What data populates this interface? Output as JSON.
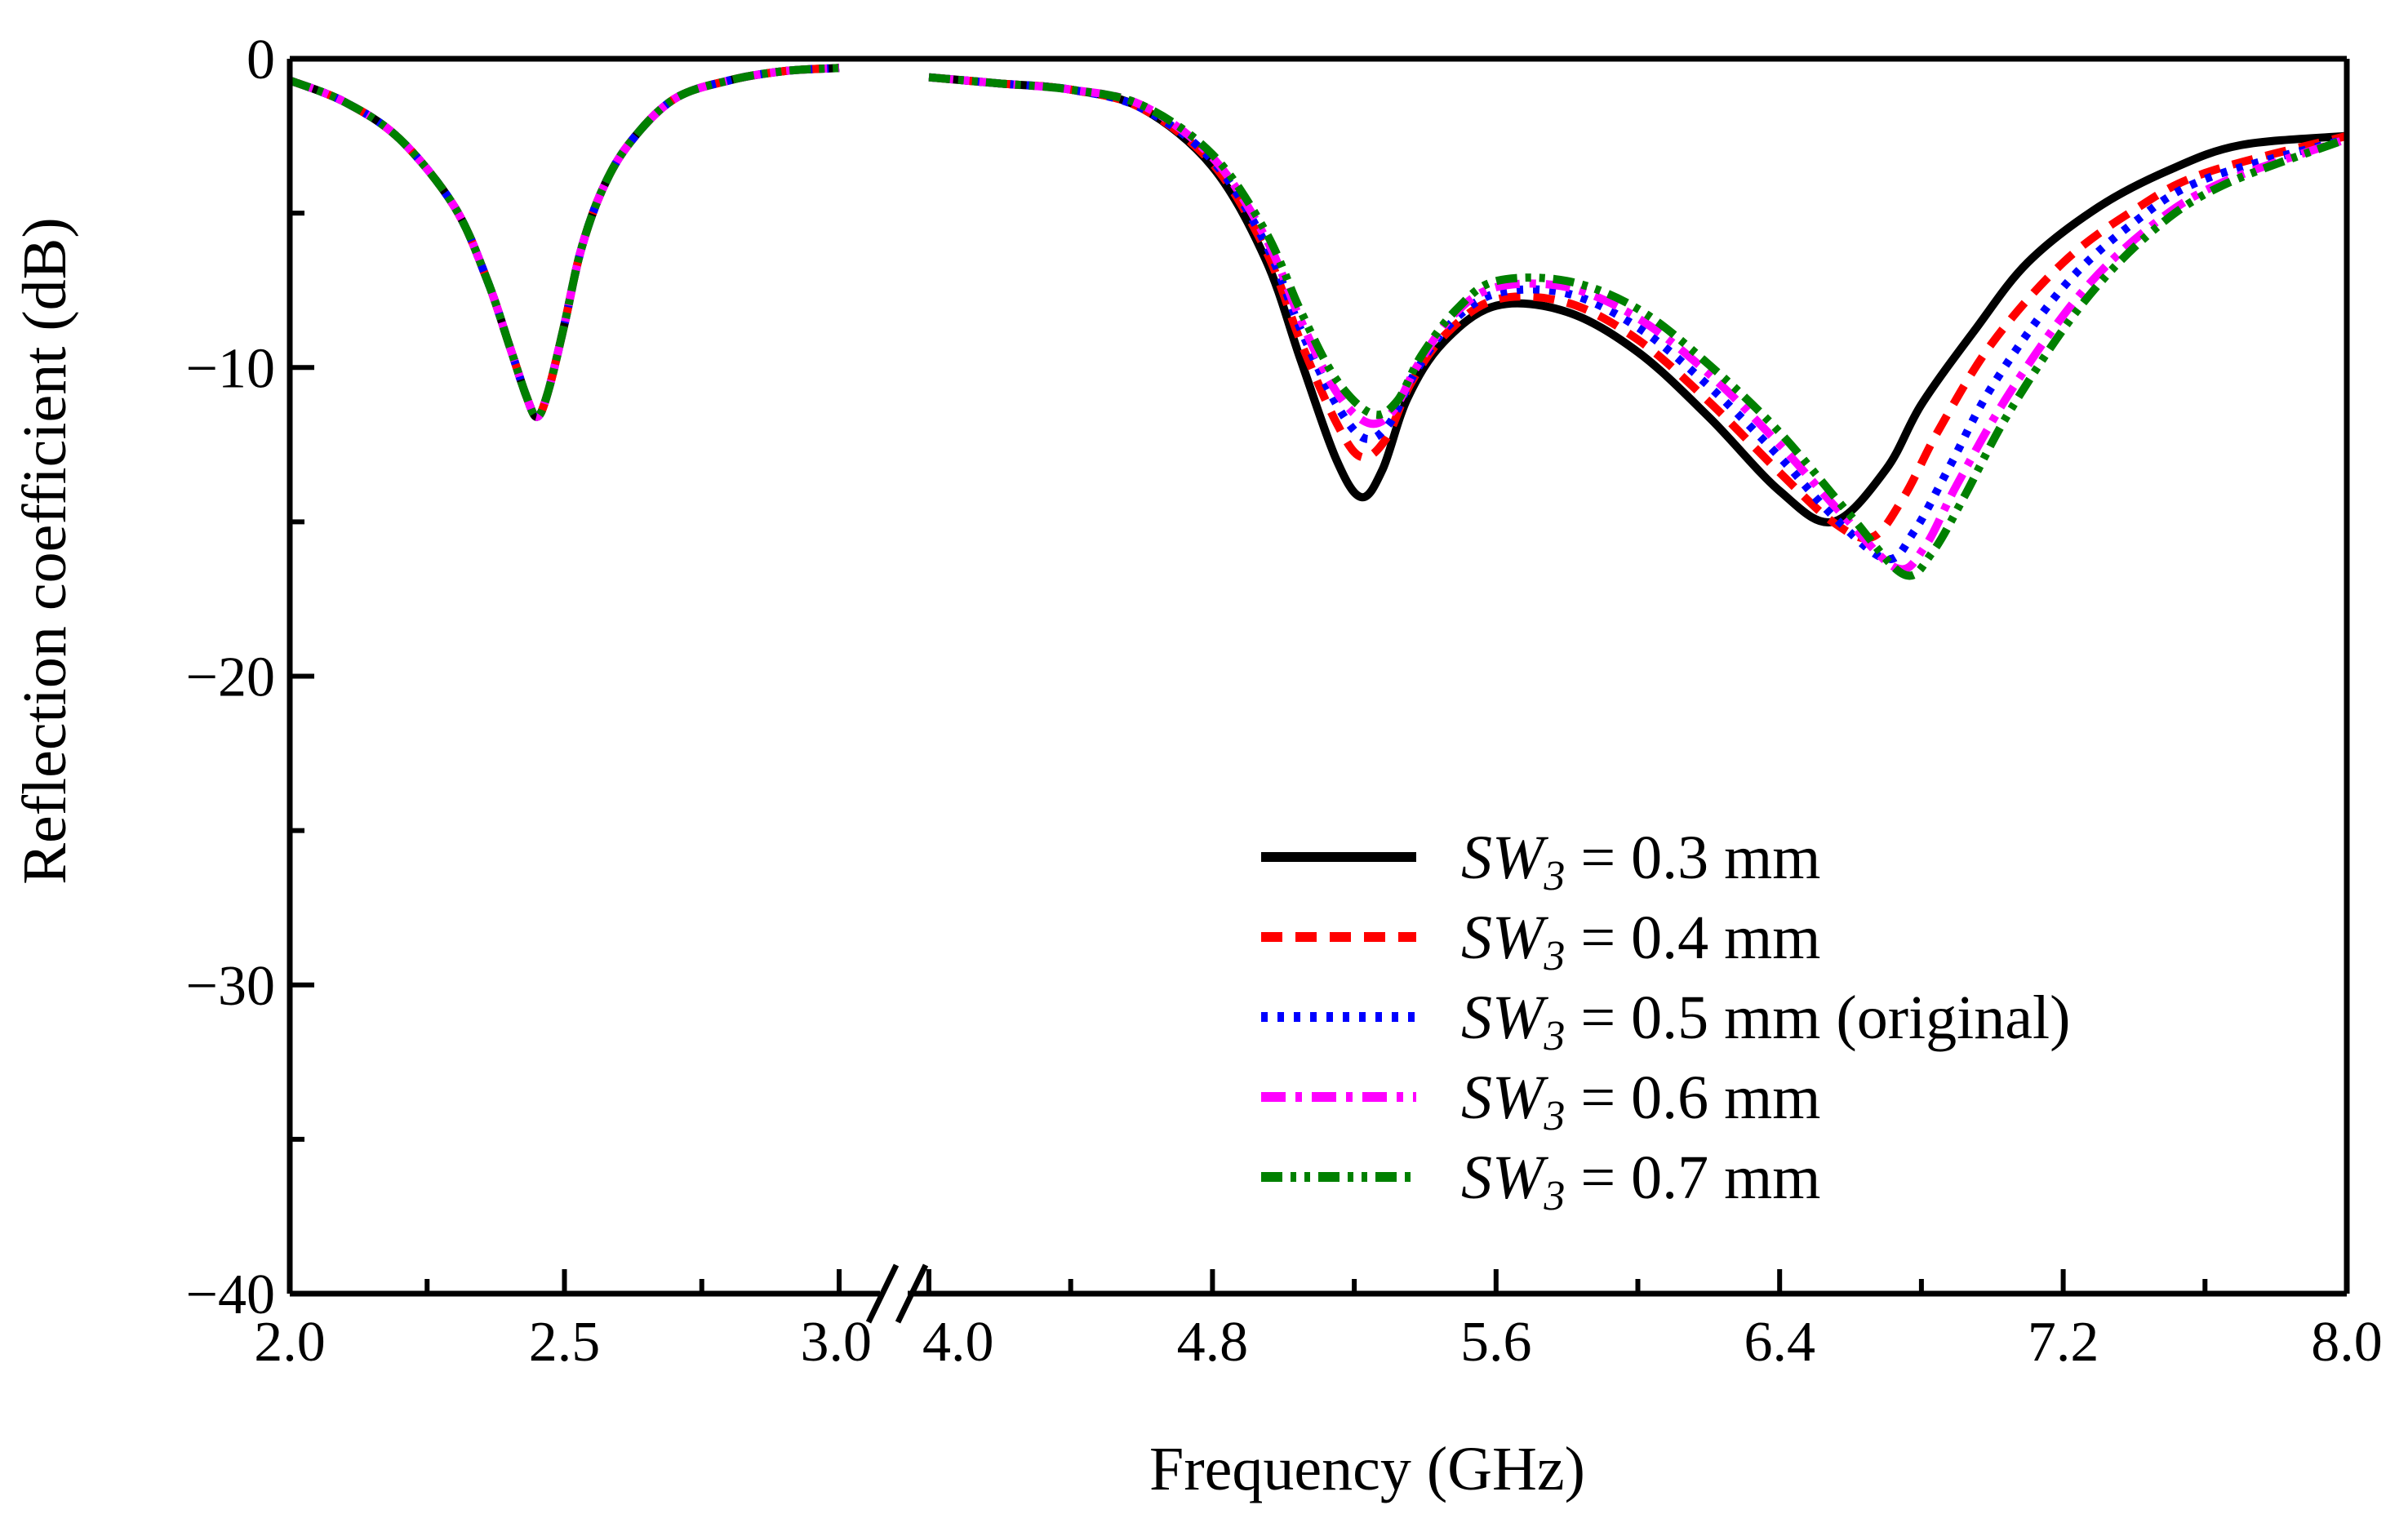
{
  "chart_data": {
    "type": "line",
    "xlabel": "Frequency (GHz)",
    "ylabel": "Reflection coefficient (dB)",
    "ylim": [
      -40,
      0
    ],
    "y_ticks": [
      0,
      -10,
      -20,
      -30,
      -40
    ],
    "y_tick_labels": [
      "0",
      "−10",
      "−20",
      "−30",
      "−40"
    ],
    "x_axis_break": {
      "from": 3.0,
      "to": 4.0
    },
    "x_segments": [
      {
        "range": [
          2.0,
          3.0
        ],
        "ticks": [
          2.0,
          2.5,
          3.0
        ],
        "tick_labels": [
          "2.0",
          "2.5",
          "3.0"
        ]
      },
      {
        "range": [
          4.0,
          8.0
        ],
        "ticks": [
          4.0,
          4.8,
          5.6,
          6.4,
          7.2,
          8.0
        ],
        "tick_labels": [
          "4.0",
          "4.8",
          "5.6",
          "6.4",
          "7.2",
          "8.0"
        ]
      }
    ],
    "legend_position": "lower-right",
    "series": [
      {
        "name": "SW3 = 0.3 mm",
        "label_prefix": "SW",
        "label_sub": "3",
        "label_suffix": " = 0.3 mm",
        "color": "#000000",
        "dash": "solid",
        "x": [
          2.0,
          2.1,
          2.2,
          2.3,
          2.36,
          2.4,
          2.43,
          2.45,
          2.47,
          2.5,
          2.53,
          2.57,
          2.62,
          2.7,
          2.8,
          2.9,
          3.0,
          4.0,
          4.2,
          4.4,
          4.6,
          4.8,
          4.95,
          5.05,
          5.15,
          5.22,
          5.28,
          5.35,
          5.45,
          5.6,
          5.8,
          6.0,
          6.2,
          6.4,
          6.55,
          6.7,
          6.8,
          6.95,
          7.1,
          7.3,
          7.5,
          7.7,
          8.0
        ],
        "y": [
          -0.7,
          -1.4,
          -2.6,
          -4.8,
          -7.2,
          -9.3,
          -10.9,
          -11.6,
          -10.8,
          -8.6,
          -6.2,
          -4.2,
          -2.7,
          -1.3,
          -0.7,
          -0.4,
          -0.3,
          -0.6,
          -0.8,
          -1.0,
          -1.6,
          -3.5,
          -6.5,
          -9.8,
          -13.0,
          -14.2,
          -13.3,
          -11.0,
          -9.2,
          -8.0,
          -8.2,
          -9.5,
          -11.6,
          -14.0,
          -15.0,
          -13.3,
          -11.2,
          -8.8,
          -6.6,
          -4.8,
          -3.6,
          -2.8,
          -2.5
        ]
      },
      {
        "name": "SW3 = 0.4 mm",
        "label_prefix": "SW",
        "label_sub": "3",
        "label_suffix": " = 0.4 mm",
        "color": "#ff0000",
        "dash": "dashed",
        "x": [
          2.0,
          2.1,
          2.2,
          2.3,
          2.36,
          2.4,
          2.43,
          2.45,
          2.47,
          2.5,
          2.53,
          2.57,
          2.62,
          2.7,
          2.8,
          2.9,
          3.0,
          4.0,
          4.2,
          4.4,
          4.6,
          4.8,
          4.95,
          5.05,
          5.15,
          5.22,
          5.29,
          5.36,
          5.46,
          5.6,
          5.8,
          6.0,
          6.2,
          6.4,
          6.55,
          6.66,
          6.75,
          6.85,
          7.0,
          7.2,
          7.4,
          7.6,
          8.0
        ],
        "y": [
          -0.7,
          -1.4,
          -2.6,
          -4.8,
          -7.2,
          -9.3,
          -10.9,
          -11.6,
          -10.8,
          -8.6,
          -6.2,
          -4.2,
          -2.7,
          -1.3,
          -0.7,
          -0.4,
          -0.3,
          -0.6,
          -0.8,
          -1.0,
          -1.6,
          -3.4,
          -6.2,
          -9.2,
          -11.8,
          -12.9,
          -12.3,
          -10.5,
          -8.9,
          -7.8,
          -7.9,
          -9.1,
          -11.1,
          -13.4,
          -15.0,
          -15.5,
          -14.2,
          -12.0,
          -9.2,
          -6.6,
          -4.9,
          -3.7,
          -2.5
        ]
      },
      {
        "name": "SW3 = 0.5 mm (original)",
        "label_prefix": "SW",
        "label_sub": "3",
        "label_suffix": " = 0.5 mm (original)",
        "color": "#0000ff",
        "dash": "dotted",
        "x": [
          2.0,
          2.1,
          2.2,
          2.3,
          2.36,
          2.4,
          2.43,
          2.45,
          2.47,
          2.5,
          2.53,
          2.57,
          2.62,
          2.7,
          2.8,
          2.9,
          3.0,
          4.0,
          4.2,
          4.4,
          4.6,
          4.8,
          4.95,
          5.05,
          5.15,
          5.23,
          5.3,
          5.37,
          5.47,
          5.6,
          5.8,
          6.0,
          6.2,
          6.4,
          6.55,
          6.7,
          6.78,
          6.88,
          7.0,
          7.2,
          7.4,
          7.6,
          8.0
        ],
        "y": [
          -0.7,
          -1.4,
          -2.6,
          -4.8,
          -7.2,
          -9.3,
          -10.9,
          -11.6,
          -10.8,
          -8.6,
          -6.2,
          -4.2,
          -2.7,
          -1.3,
          -0.7,
          -0.4,
          -0.3,
          -0.6,
          -0.8,
          -1.0,
          -1.6,
          -3.3,
          -6.0,
          -8.8,
          -11.2,
          -12.3,
          -11.8,
          -10.2,
          -8.6,
          -7.6,
          -7.6,
          -8.7,
          -10.6,
          -12.9,
          -14.8,
          -16.2,
          -15.3,
          -13.2,
          -10.6,
          -7.4,
          -5.3,
          -3.9,
          -2.6
        ]
      },
      {
        "name": "SW3 = 0.6 mm",
        "label_prefix": "SW",
        "label_sub": "3",
        "label_suffix": " = 0.6 mm",
        "color": "#ff00ff",
        "dash": "dashdot",
        "x": [
          2.0,
          2.1,
          2.2,
          2.3,
          2.36,
          2.4,
          2.43,
          2.45,
          2.47,
          2.5,
          2.53,
          2.57,
          2.62,
          2.7,
          2.8,
          2.9,
          3.0,
          4.0,
          4.2,
          4.4,
          4.6,
          4.8,
          4.95,
          5.05,
          5.15,
          5.24,
          5.31,
          5.38,
          5.48,
          5.6,
          5.8,
          6.0,
          6.2,
          6.4,
          6.58,
          6.73,
          6.81,
          6.9,
          7.05,
          7.25,
          7.45,
          7.65,
          8.0
        ],
        "y": [
          -0.7,
          -1.4,
          -2.6,
          -4.8,
          -7.2,
          -9.3,
          -10.9,
          -11.6,
          -10.8,
          -8.6,
          -6.2,
          -4.2,
          -2.7,
          -1.3,
          -0.7,
          -0.4,
          -0.3,
          -0.6,
          -0.8,
          -1.0,
          -1.5,
          -3.2,
          -5.8,
          -8.5,
          -10.8,
          -11.8,
          -11.4,
          -9.9,
          -8.3,
          -7.4,
          -7.4,
          -8.4,
          -10.2,
          -12.5,
          -14.8,
          -16.5,
          -15.8,
          -13.8,
          -10.8,
          -7.6,
          -5.4,
          -4.0,
          -2.6
        ]
      },
      {
        "name": "SW3 = 0.7 mm",
        "label_prefix": "SW",
        "label_sub": "3",
        "label_suffix": " = 0.7 mm",
        "color": "#008000",
        "dash": "dashdotdot",
        "x": [
          2.0,
          2.1,
          2.2,
          2.3,
          2.36,
          2.4,
          2.43,
          2.45,
          2.47,
          2.5,
          2.53,
          2.57,
          2.62,
          2.7,
          2.8,
          2.9,
          3.0,
          4.0,
          4.2,
          4.4,
          4.6,
          4.8,
          4.95,
          5.05,
          5.15,
          5.25,
          5.32,
          5.39,
          5.49,
          5.6,
          5.8,
          6.0,
          6.2,
          6.4,
          6.6,
          6.75,
          6.83,
          6.92,
          7.05,
          7.25,
          7.45,
          7.65,
          8.0
        ],
        "y": [
          -0.7,
          -1.4,
          -2.6,
          -4.8,
          -7.2,
          -9.3,
          -10.9,
          -11.6,
          -10.8,
          -8.6,
          -6.2,
          -4.2,
          -2.7,
          -1.3,
          -0.7,
          -0.4,
          -0.3,
          -0.6,
          -0.8,
          -1.0,
          -1.5,
          -3.1,
          -5.6,
          -8.2,
          -10.4,
          -11.5,
          -11.1,
          -9.6,
          -8.1,
          -7.2,
          -7.2,
          -8.1,
          -9.9,
          -12.1,
          -14.8,
          -16.7,
          -16.0,
          -14.2,
          -11.4,
          -8.0,
          -5.6,
          -4.1,
          -2.6
        ]
      }
    ]
  }
}
